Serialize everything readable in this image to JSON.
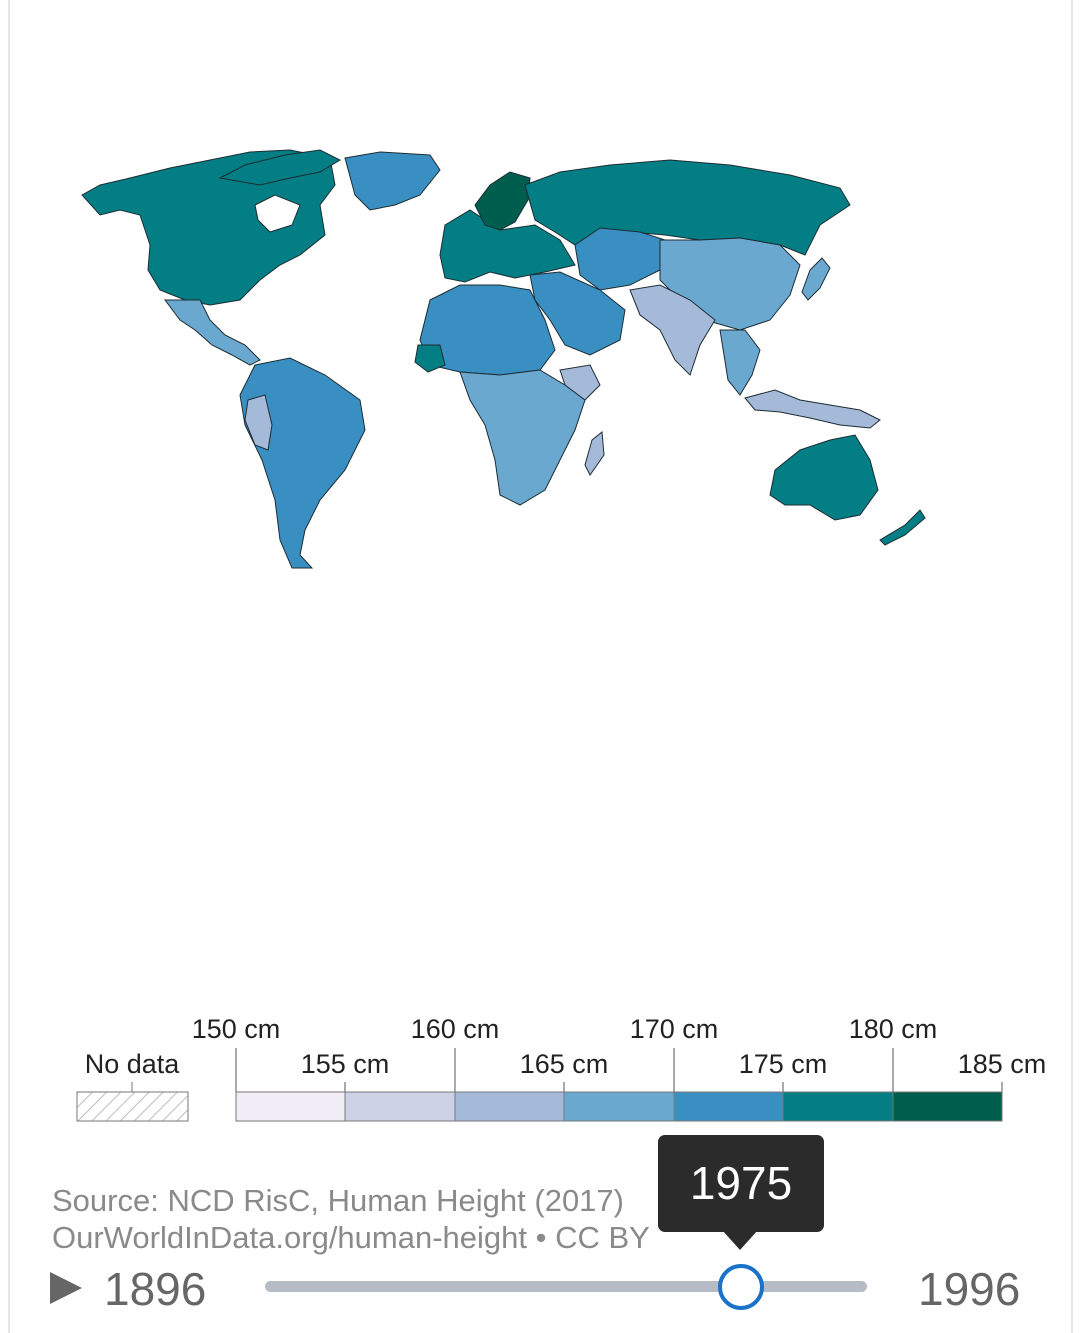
{
  "map": {
    "year": "1975",
    "color_scale": [
      {
        "bin": "150-155 cm",
        "color": "#f2eef7"
      },
      {
        "bin": "155-160 cm",
        "color": "#cdd1e6"
      },
      {
        "bin": "160-165 cm",
        "color": "#a5bad9"
      },
      {
        "bin": "165-170 cm",
        "color": "#6aa8d0"
      },
      {
        "bin": "170-175 cm",
        "color": "#3a8fc2"
      },
      {
        "bin": "175-180 cm",
        "color": "#037e85"
      },
      {
        "bin": "180-185 cm",
        "color": "#005e4f"
      }
    ],
    "no_data_color": "#ffffff"
  },
  "legend": {
    "no_data_label": "No data",
    "top_labels": [
      "150 cm",
      "160 cm",
      "170 cm",
      "180 cm"
    ],
    "bottom_labels": [
      "155 cm",
      "165 cm",
      "175 cm",
      "185 cm"
    ]
  },
  "source": {
    "line1": "Source: NCD RisC, Human Height (2017)",
    "line2": "OurWorldInData.org/human-height • CC BY"
  },
  "timeline": {
    "start_year": "1896",
    "end_year": "1996",
    "current_year": "1975",
    "position_fraction": 0.79
  }
}
